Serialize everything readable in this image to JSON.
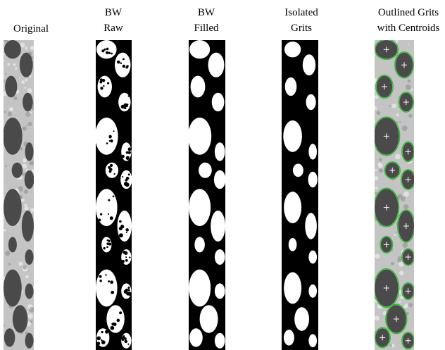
{
  "panels": [
    {
      "title_lines": [
        "Original"
      ]
    },
    {
      "title_lines": [
        "BW",
        "Raw"
      ]
    },
    {
      "title_lines": [
        "BW",
        "Filled"
      ]
    },
    {
      "title_lines": [
        "Isolated",
        "Grits"
      ]
    },
    {
      "title_lines": [
        "Outlined Grits",
        "with Centroids"
      ]
    }
  ]
}
